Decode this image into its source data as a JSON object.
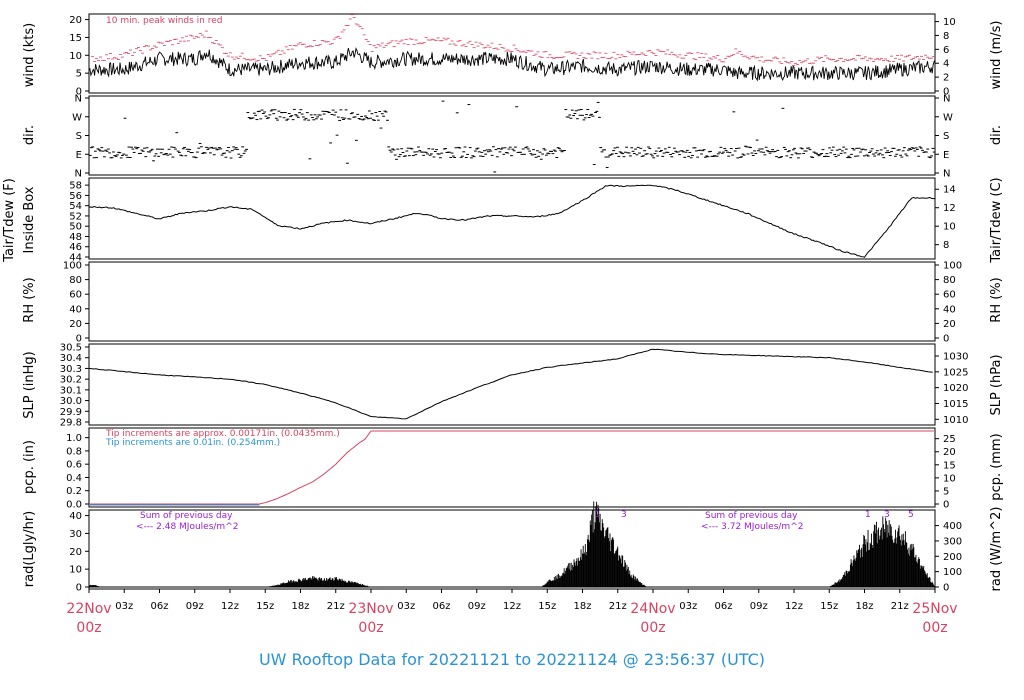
{
  "title": "UW Rooftop Data for 20221121  to  20221124 @ 23:56:37  (UTC)",
  "colors": {
    "red": "#d9435f",
    "blue": "#2a93d5",
    "purple": "#9b1fd1",
    "black": "#000000"
  },
  "x_axis": {
    "hours": [
      0,
      3,
      6,
      9,
      12,
      15,
      18,
      21,
      24,
      27,
      30,
      33,
      36,
      39,
      42,
      45,
      48,
      51,
      54,
      57,
      60,
      63,
      66,
      69,
      72
    ],
    "labels": [
      "22Nov",
      "03z",
      "06z",
      "09z",
      "12z",
      "15z",
      "18z",
      "21z",
      "23Nov",
      "03z",
      "06z",
      "09z",
      "12z",
      "15z",
      "18z",
      "21z",
      "24Nov",
      "03z",
      "06z",
      "09z",
      "12z",
      "15z",
      "18z",
      "21z",
      "25Nov"
    ],
    "day_labels": [
      {
        "hour": 0,
        "top": "22Nov",
        "bottom": "00z"
      },
      {
        "hour": 24,
        "top": "23Nov",
        "bottom": "00z"
      },
      {
        "hour": 48,
        "top": "24Nov",
        "bottom": "00z"
      },
      {
        "hour": 72,
        "top": "25Nov",
        "bottom": "00z"
      }
    ]
  },
  "panels": {
    "wind": {
      "left_label": "wind (kts)",
      "right_label": "wind (m/s)",
      "left_ticks": [
        "0",
        "5",
        "10",
        "15",
        "20"
      ],
      "right_ticks": [
        "0",
        "2",
        "4",
        "6",
        "8",
        "10"
      ],
      "note": "10 min. peak winds in red"
    },
    "dir": {
      "left_label": "dir.",
      "right_label": "dir.",
      "left_ticks": [
        "N",
        "E",
        "S",
        "W",
        "N"
      ],
      "right_ticks": [
        "N",
        "E",
        "S",
        "W",
        "N"
      ]
    },
    "temp": {
      "left_label_1": "Tair/Tdew (F)",
      "left_label_2": "Inside Box",
      "right_label": "Tair/Tdew (C)",
      "left_ticks": [
        "44",
        "46",
        "48",
        "50",
        "52",
        "54",
        "56",
        "58"
      ],
      "right_ticks": [
        "8",
        "10",
        "12",
        "14"
      ]
    },
    "rh": {
      "left_label": "RH (%)",
      "right_label": "RH (%)",
      "left_ticks": [
        "0",
        "20",
        "40",
        "60",
        "80",
        "100"
      ],
      "right_ticks": [
        "0",
        "20",
        "40",
        "60",
        "80",
        "100"
      ]
    },
    "slp": {
      "left_label": "SLP (inHg)",
      "right_label": "SLP (hPa)",
      "left_ticks": [
        "29.8",
        "29.9",
        "30.0",
        "30.1",
        "30.2",
        "30.3",
        "30.4",
        "30.5"
      ],
      "right_ticks": [
        "1010",
        "1015",
        "1020",
        "1025",
        "1030"
      ]
    },
    "pcp": {
      "left_label": "pcp. (in)",
      "right_label": "pcp. (mm)",
      "left_ticks": [
        "0.0",
        "0.2",
        "0.4",
        "0.6",
        "0.8",
        "1.0"
      ],
      "right_ticks": [
        "0",
        "5",
        "10",
        "15",
        "20",
        "25"
      ],
      "note_red": "Tip increments are approx. 0.00171in. (0.0435mm.)",
      "note_blue": "Tip increments are 0.01in. (0.254mm.)"
    },
    "rad": {
      "left_label": "rad(Lgly/hr)",
      "right_label": "rad (W/m^2)",
      "left_ticks": [
        "0",
        "10",
        "20",
        "30",
        "40"
      ],
      "right_ticks": [
        "0",
        "100",
        "200",
        "300",
        "400"
      ],
      "day1_note_1": "Sum of previous day",
      "day1_note_2": "<--- 2.48 MJoules/m^2",
      "day2_note_1": "Sum of previous day",
      "day2_note_2": "<--- 3.72 MJoules/m^2",
      "markers_a": [
        "1",
        "3"
      ],
      "markers_b": [
        "1",
        "3",
        "5"
      ]
    }
  },
  "chart_data": [
    {
      "type": "line",
      "name": "wind",
      "xlabel": "",
      "ylabel": "wind (kts)",
      "ylim": [
        0,
        21
      ],
      "x_hours": [
        0,
        3,
        6,
        9,
        10,
        12,
        15,
        18,
        21,
        22.5,
        24,
        27,
        30,
        33,
        36,
        39,
        42,
        45,
        48,
        51,
        54,
        55,
        57,
        60,
        63,
        66,
        69,
        72
      ],
      "values": [
        6,
        6,
        9,
        9,
        11,
        6,
        6,
        8,
        8,
        11,
        8,
        9,
        9,
        9,
        9,
        6,
        7,
        6,
        7,
        6,
        6,
        5,
        5,
        5,
        5,
        5,
        6,
        7
      ],
      "peaks": [
        9,
        10,
        13,
        15,
        16,
        10,
        9,
        13,
        14,
        21,
        12,
        14,
        14,
        13,
        12,
        10,
        10,
        10,
        11,
        10,
        9,
        11,
        9,
        8,
        9,
        9,
        9,
        10
      ]
    },
    {
      "type": "scatter",
      "name": "dir",
      "ylim": [
        "N",
        "N"
      ],
      "categories": [
        "N",
        "E",
        "S",
        "W",
        "N"
      ],
      "x_hours": [
        0,
        3,
        6,
        9,
        12,
        15,
        18,
        21,
        24,
        27,
        30,
        33,
        36,
        39,
        42,
        45,
        48,
        51,
        54,
        57,
        60,
        63,
        66,
        69,
        72
      ],
      "values": [
        "E",
        "E",
        "E",
        "E",
        "E",
        "W",
        "W",
        "W",
        "W",
        "E",
        "E",
        "E",
        "E",
        "E",
        "W",
        "E",
        "E",
        "E",
        "E",
        "E",
        "E",
        "E",
        "E",
        "E",
        "E"
      ]
    },
    {
      "type": "line",
      "name": "temp",
      "ylim": [
        44,
        59
      ],
      "x_hours": [
        0,
        2,
        4,
        6,
        8,
        10,
        12,
        14,
        16,
        18,
        20,
        22,
        24,
        26,
        28,
        30,
        32,
        34,
        36,
        38,
        40,
        42,
        44,
        46,
        48,
        50,
        52,
        54,
        56,
        58,
        60,
        62,
        64,
        66,
        68,
        70,
        72
      ],
      "values": [
        53.8,
        53.6,
        52.5,
        51.4,
        52.6,
        53.0,
        53.8,
        53.2,
        50.2,
        49.5,
        50.6,
        51.2,
        50.5,
        51.5,
        52.6,
        51.5,
        51.2,
        52.0,
        52.0,
        51.8,
        52.5,
        55.0,
        57.9,
        57.8,
        58.0,
        57.0,
        55.5,
        54.0,
        52.5,
        50.5,
        48.5,
        47.0,
        45.2,
        44.0,
        49.5,
        55.5,
        55.5
      ]
    },
    {
      "type": "line",
      "name": "rh",
      "ylim": [
        0,
        100
      ],
      "x_hours": [],
      "values": []
    },
    {
      "type": "line",
      "name": "slp",
      "ylim": [
        29.8,
        30.5
      ],
      "x_hours": [
        0,
        3,
        6,
        9,
        12,
        15,
        18,
        21,
        24,
        27,
        30,
        33,
        36,
        39,
        42,
        45,
        48,
        51,
        54,
        57,
        60,
        63,
        66,
        69,
        72
      ],
      "values": [
        30.3,
        30.27,
        30.24,
        30.22,
        30.2,
        30.15,
        30.07,
        29.98,
        29.85,
        29.83,
        29.99,
        30.12,
        30.24,
        30.31,
        30.35,
        30.39,
        30.48,
        30.45,
        30.43,
        30.42,
        30.41,
        30.4,
        30.36,
        30.31,
        30.26
      ]
    },
    {
      "type": "line",
      "name": "pcp",
      "ylim": [
        0,
        1.1
      ],
      "x_hours": [
        0,
        14.5,
        15,
        16,
        17,
        18,
        19,
        20,
        21,
        22,
        23,
        23.5,
        24,
        26,
        72
      ],
      "values": [
        0,
        0,
        0.02,
        0.08,
        0.16,
        0.25,
        0.33,
        0.45,
        0.6,
        0.78,
        0.92,
        0.98,
        1.1,
        1.1,
        1.1
      ]
    },
    {
      "type": "area",
      "name": "rad",
      "ylim": [
        0,
        42
      ],
      "x_hours": [
        0,
        0.5,
        1,
        15,
        16,
        17,
        18,
        19,
        20,
        21,
        22,
        23,
        24,
        38.5,
        39,
        40,
        41,
        42,
        42.5,
        43,
        44,
        45,
        46,
        47,
        47.5,
        63,
        64,
        65,
        66,
        67,
        68,
        69,
        70,
        71,
        72
      ],
      "values": [
        1,
        1,
        0,
        0,
        1,
        3,
        4,
        5,
        4,
        5,
        3,
        2,
        0,
        0,
        3,
        6,
        12,
        18,
        26,
        42,
        30,
        20,
        8,
        2,
        0,
        0,
        4,
        14,
        24,
        30,
        33,
        30,
        22,
        10,
        0
      ]
    }
  ]
}
